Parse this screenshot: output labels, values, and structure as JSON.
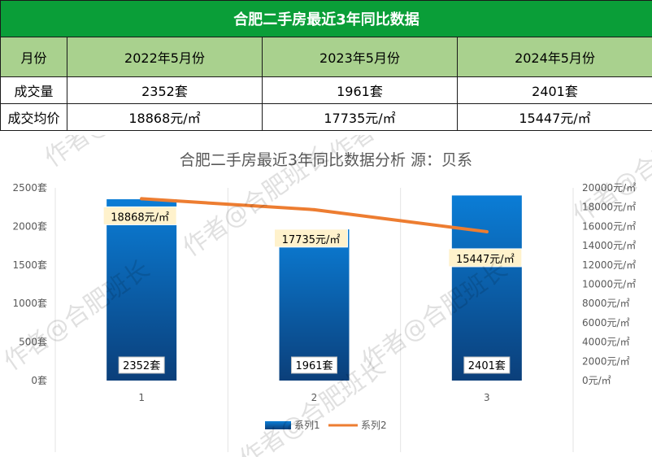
{
  "table": {
    "title": "合肥二手房最近3年同比数据",
    "headers": [
      "月份",
      "2022年5月份",
      "2023年5月份",
      "2024年5月份"
    ],
    "rows": [
      [
        "成交量",
        "2352套",
        "1961套",
        "2401套"
      ],
      [
        "成交均价",
        "18868元/㎡",
        "17735元/㎡",
        "15447元/㎡"
      ]
    ]
  },
  "chart_data": {
    "type": "bar",
    "title": "合肥二手房最近3年同比数据分析 源：贝系",
    "categories": [
      "1",
      "2",
      "3"
    ],
    "series": [
      {
        "name": "系列1",
        "type": "bar",
        "axis": "left",
        "values": [
          2352,
          1961,
          2401
        ],
        "labels": [
          "2352套",
          "1961套",
          "2401套"
        ],
        "color": "#0070c0"
      },
      {
        "name": "系列2",
        "type": "line",
        "axis": "right",
        "values": [
          18868,
          17735,
          15447
        ],
        "labels": [
          "18868元/㎡",
          "17735元/㎡",
          "15447元/㎡"
        ],
        "color": "#ed7d31"
      }
    ],
    "y_left": {
      "min": 0,
      "max": 2500,
      "step": 500,
      "ticks": [
        "0套",
        "500套",
        "1000套",
        "1500套",
        "2000套",
        "2500套"
      ]
    },
    "y_right": {
      "min": 0,
      "max": 20000,
      "step": 2000,
      "ticks": [
        "0元/㎡",
        "2000元/㎡",
        "4000元/㎡",
        "6000元/㎡",
        "8000元/㎡",
        "10000元/㎡",
        "12000元/㎡",
        "14000元/㎡",
        "16000元/㎡",
        "18000元/㎡",
        "20000元/㎡"
      ]
    },
    "grid": true,
    "legend": "bottom"
  },
  "watermark": "作者@合肥班长",
  "colors": {
    "title_bg": "#0a9e38",
    "header_bg": "#a9d18e",
    "bar_top": "#0b7dd6",
    "bar_bottom": "#0b3f7a",
    "line": "#ed7d31"
  }
}
